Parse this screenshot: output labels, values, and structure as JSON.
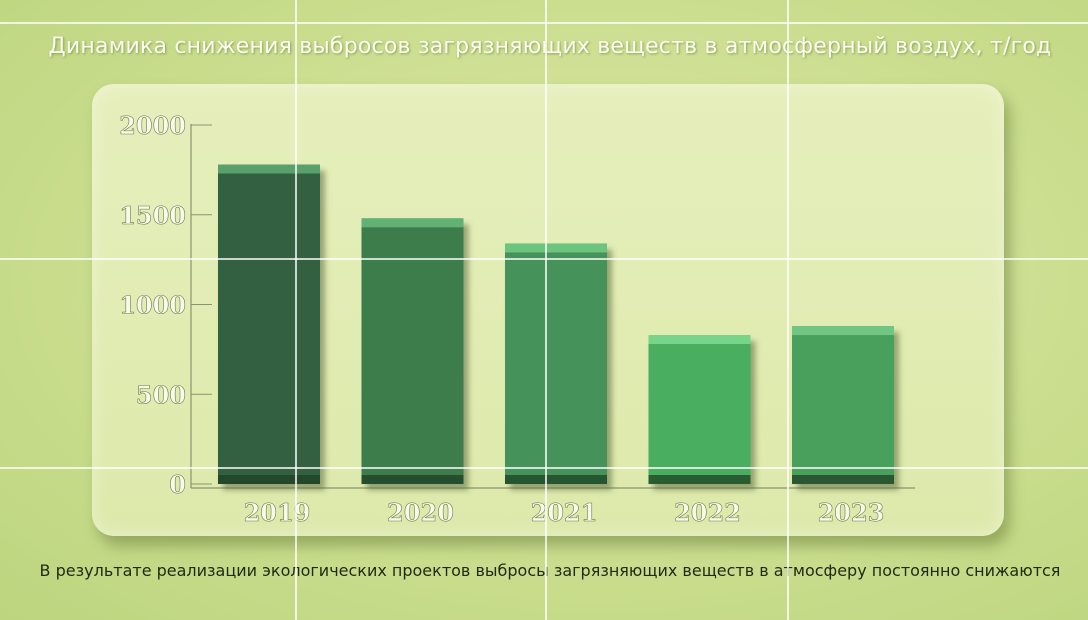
{
  "title": "Динамика снижения выбросов загрязняющих веществ в атмосферный воздух, т/год",
  "caption": "В результате реализации экологических проектов выбросы загрязняющих веществ в атмосферу постоянно снижаются",
  "chart_data": {
    "type": "bar",
    "title": "Динамика снижения выбросов загрязняющих веществ в атмосферный воздух, т/год",
    "categories": [
      "2019",
      "2020",
      "2021",
      "2022",
      "2023"
    ],
    "values": [
      1780,
      1480,
      1340,
      830,
      880
    ],
    "yticks": [
      "0",
      "500",
      "1000",
      "1500",
      "2000"
    ],
    "ylim": [
      0,
      2000
    ],
    "xlabel": "",
    "ylabel": "",
    "grid": false,
    "bar_colors": [
      "#33603f",
      "#3c7c4c",
      "#44935a",
      "#4aae60",
      "#48a05c"
    ],
    "bar_cap_colors": [
      "#5aa06a",
      "#62b274",
      "#6cc47e",
      "#78d48a",
      "#70c682"
    ]
  }
}
